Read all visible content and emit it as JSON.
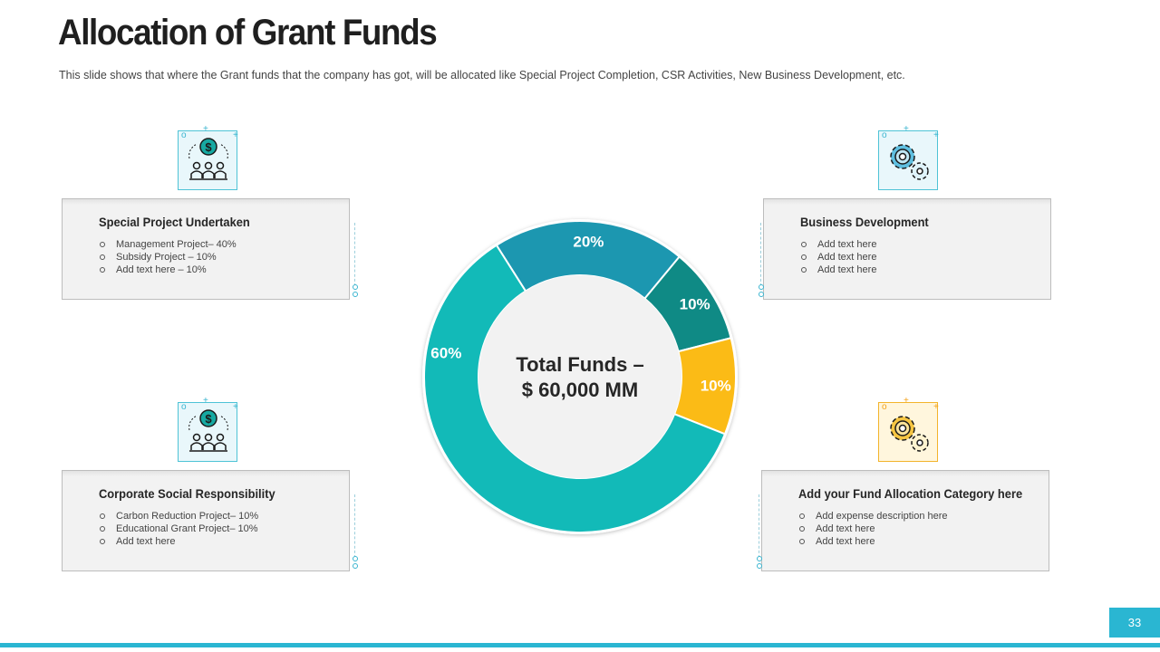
{
  "slide": {
    "title": "Allocation of Grant Funds",
    "subtitle": "This slide shows that where the Grant funds that the company has got, will be allocated like Special Project Completion, CSR Activities, New Business Development,  etc.",
    "page_number": "33"
  },
  "cards": [
    {
      "title": "Special Project Undertaken",
      "items": [
        "Management Project– 40%",
        "Subsidy Project – 10%",
        "Add text here – 10%"
      ],
      "icon": "money-group-icon"
    },
    {
      "title": "Business Development",
      "items": [
        "Add text here",
        "Add text here",
        "Add text here"
      ],
      "icon": "gears-icon"
    },
    {
      "title": "Corporate Social Responsibility",
      "items": [
        "Carbon Reduction Project– 10%",
        "Educational  Grant Project– 10%",
        "Add text here"
      ],
      "icon": "money-group-icon"
    },
    {
      "title": "Add your Fund Allocation Category here",
      "items": [
        "Add expense description  here",
        "Add text here",
        "Add text here"
      ],
      "icon": "gears-icon"
    }
  ],
  "chart_data": {
    "type": "pie",
    "donut": true,
    "center_label": [
      "Total Funds –",
      "$ 60,000 MM"
    ],
    "slices": [
      {
        "label": "20%",
        "value": 20,
        "color": "#1c97b0"
      },
      {
        "label": "10%",
        "value": 10,
        "color": "#0f8a85"
      },
      {
        "label": "10%",
        "value": 10,
        "color": "#fbbb16"
      },
      {
        "label": "60%",
        "value": 60,
        "color": "#12bab8"
      }
    ]
  },
  "colors": {
    "accent": "#2ab6d2",
    "teal": "#12bab8",
    "gold": "#fbbb16"
  }
}
